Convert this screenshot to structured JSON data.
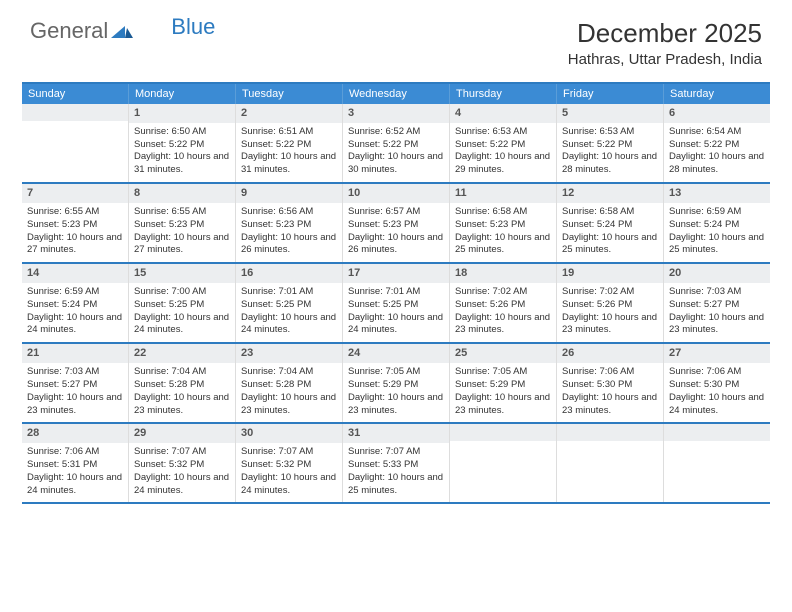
{
  "logo": {
    "text1": "General",
    "text2": "Blue"
  },
  "title": "December 2025",
  "location": "Hathras, Uttar Pradesh, India",
  "colors": {
    "header_bg": "#3b8bd4",
    "border": "#2d7bc0",
    "daynum_bg": "#eceef0"
  },
  "weekdays": [
    "Sunday",
    "Monday",
    "Tuesday",
    "Wednesday",
    "Thursday",
    "Friday",
    "Saturday"
  ],
  "weeks": [
    [
      {
        "n": "",
        "sr": "",
        "ss": "",
        "dl": ""
      },
      {
        "n": "1",
        "sr": "Sunrise: 6:50 AM",
        "ss": "Sunset: 5:22 PM",
        "dl": "Daylight: 10 hours and 31 minutes."
      },
      {
        "n": "2",
        "sr": "Sunrise: 6:51 AM",
        "ss": "Sunset: 5:22 PM",
        "dl": "Daylight: 10 hours and 31 minutes."
      },
      {
        "n": "3",
        "sr": "Sunrise: 6:52 AM",
        "ss": "Sunset: 5:22 PM",
        "dl": "Daylight: 10 hours and 30 minutes."
      },
      {
        "n": "4",
        "sr": "Sunrise: 6:53 AM",
        "ss": "Sunset: 5:22 PM",
        "dl": "Daylight: 10 hours and 29 minutes."
      },
      {
        "n": "5",
        "sr": "Sunrise: 6:53 AM",
        "ss": "Sunset: 5:22 PM",
        "dl": "Daylight: 10 hours and 28 minutes."
      },
      {
        "n": "6",
        "sr": "Sunrise: 6:54 AM",
        "ss": "Sunset: 5:22 PM",
        "dl": "Daylight: 10 hours and 28 minutes."
      }
    ],
    [
      {
        "n": "7",
        "sr": "Sunrise: 6:55 AM",
        "ss": "Sunset: 5:23 PM",
        "dl": "Daylight: 10 hours and 27 minutes."
      },
      {
        "n": "8",
        "sr": "Sunrise: 6:55 AM",
        "ss": "Sunset: 5:23 PM",
        "dl": "Daylight: 10 hours and 27 minutes."
      },
      {
        "n": "9",
        "sr": "Sunrise: 6:56 AM",
        "ss": "Sunset: 5:23 PM",
        "dl": "Daylight: 10 hours and 26 minutes."
      },
      {
        "n": "10",
        "sr": "Sunrise: 6:57 AM",
        "ss": "Sunset: 5:23 PM",
        "dl": "Daylight: 10 hours and 26 minutes."
      },
      {
        "n": "11",
        "sr": "Sunrise: 6:58 AM",
        "ss": "Sunset: 5:23 PM",
        "dl": "Daylight: 10 hours and 25 minutes."
      },
      {
        "n": "12",
        "sr": "Sunrise: 6:58 AM",
        "ss": "Sunset: 5:24 PM",
        "dl": "Daylight: 10 hours and 25 minutes."
      },
      {
        "n": "13",
        "sr": "Sunrise: 6:59 AM",
        "ss": "Sunset: 5:24 PM",
        "dl": "Daylight: 10 hours and 25 minutes."
      }
    ],
    [
      {
        "n": "14",
        "sr": "Sunrise: 6:59 AM",
        "ss": "Sunset: 5:24 PM",
        "dl": "Daylight: 10 hours and 24 minutes."
      },
      {
        "n": "15",
        "sr": "Sunrise: 7:00 AM",
        "ss": "Sunset: 5:25 PM",
        "dl": "Daylight: 10 hours and 24 minutes."
      },
      {
        "n": "16",
        "sr": "Sunrise: 7:01 AM",
        "ss": "Sunset: 5:25 PM",
        "dl": "Daylight: 10 hours and 24 minutes."
      },
      {
        "n": "17",
        "sr": "Sunrise: 7:01 AM",
        "ss": "Sunset: 5:25 PM",
        "dl": "Daylight: 10 hours and 24 minutes."
      },
      {
        "n": "18",
        "sr": "Sunrise: 7:02 AM",
        "ss": "Sunset: 5:26 PM",
        "dl": "Daylight: 10 hours and 23 minutes."
      },
      {
        "n": "19",
        "sr": "Sunrise: 7:02 AM",
        "ss": "Sunset: 5:26 PM",
        "dl": "Daylight: 10 hours and 23 minutes."
      },
      {
        "n": "20",
        "sr": "Sunrise: 7:03 AM",
        "ss": "Sunset: 5:27 PM",
        "dl": "Daylight: 10 hours and 23 minutes."
      }
    ],
    [
      {
        "n": "21",
        "sr": "Sunrise: 7:03 AM",
        "ss": "Sunset: 5:27 PM",
        "dl": "Daylight: 10 hours and 23 minutes."
      },
      {
        "n": "22",
        "sr": "Sunrise: 7:04 AM",
        "ss": "Sunset: 5:28 PM",
        "dl": "Daylight: 10 hours and 23 minutes."
      },
      {
        "n": "23",
        "sr": "Sunrise: 7:04 AM",
        "ss": "Sunset: 5:28 PM",
        "dl": "Daylight: 10 hours and 23 minutes."
      },
      {
        "n": "24",
        "sr": "Sunrise: 7:05 AM",
        "ss": "Sunset: 5:29 PM",
        "dl": "Daylight: 10 hours and 23 minutes."
      },
      {
        "n": "25",
        "sr": "Sunrise: 7:05 AM",
        "ss": "Sunset: 5:29 PM",
        "dl": "Daylight: 10 hours and 23 minutes."
      },
      {
        "n": "26",
        "sr": "Sunrise: 7:06 AM",
        "ss": "Sunset: 5:30 PM",
        "dl": "Daylight: 10 hours and 23 minutes."
      },
      {
        "n": "27",
        "sr": "Sunrise: 7:06 AM",
        "ss": "Sunset: 5:30 PM",
        "dl": "Daylight: 10 hours and 24 minutes."
      }
    ],
    [
      {
        "n": "28",
        "sr": "Sunrise: 7:06 AM",
        "ss": "Sunset: 5:31 PM",
        "dl": "Daylight: 10 hours and 24 minutes."
      },
      {
        "n": "29",
        "sr": "Sunrise: 7:07 AM",
        "ss": "Sunset: 5:32 PM",
        "dl": "Daylight: 10 hours and 24 minutes."
      },
      {
        "n": "30",
        "sr": "Sunrise: 7:07 AM",
        "ss": "Sunset: 5:32 PM",
        "dl": "Daylight: 10 hours and 24 minutes."
      },
      {
        "n": "31",
        "sr": "Sunrise: 7:07 AM",
        "ss": "Sunset: 5:33 PM",
        "dl": "Daylight: 10 hours and 25 minutes."
      },
      {
        "n": "",
        "sr": "",
        "ss": "",
        "dl": ""
      },
      {
        "n": "",
        "sr": "",
        "ss": "",
        "dl": ""
      },
      {
        "n": "",
        "sr": "",
        "ss": "",
        "dl": ""
      }
    ]
  ]
}
